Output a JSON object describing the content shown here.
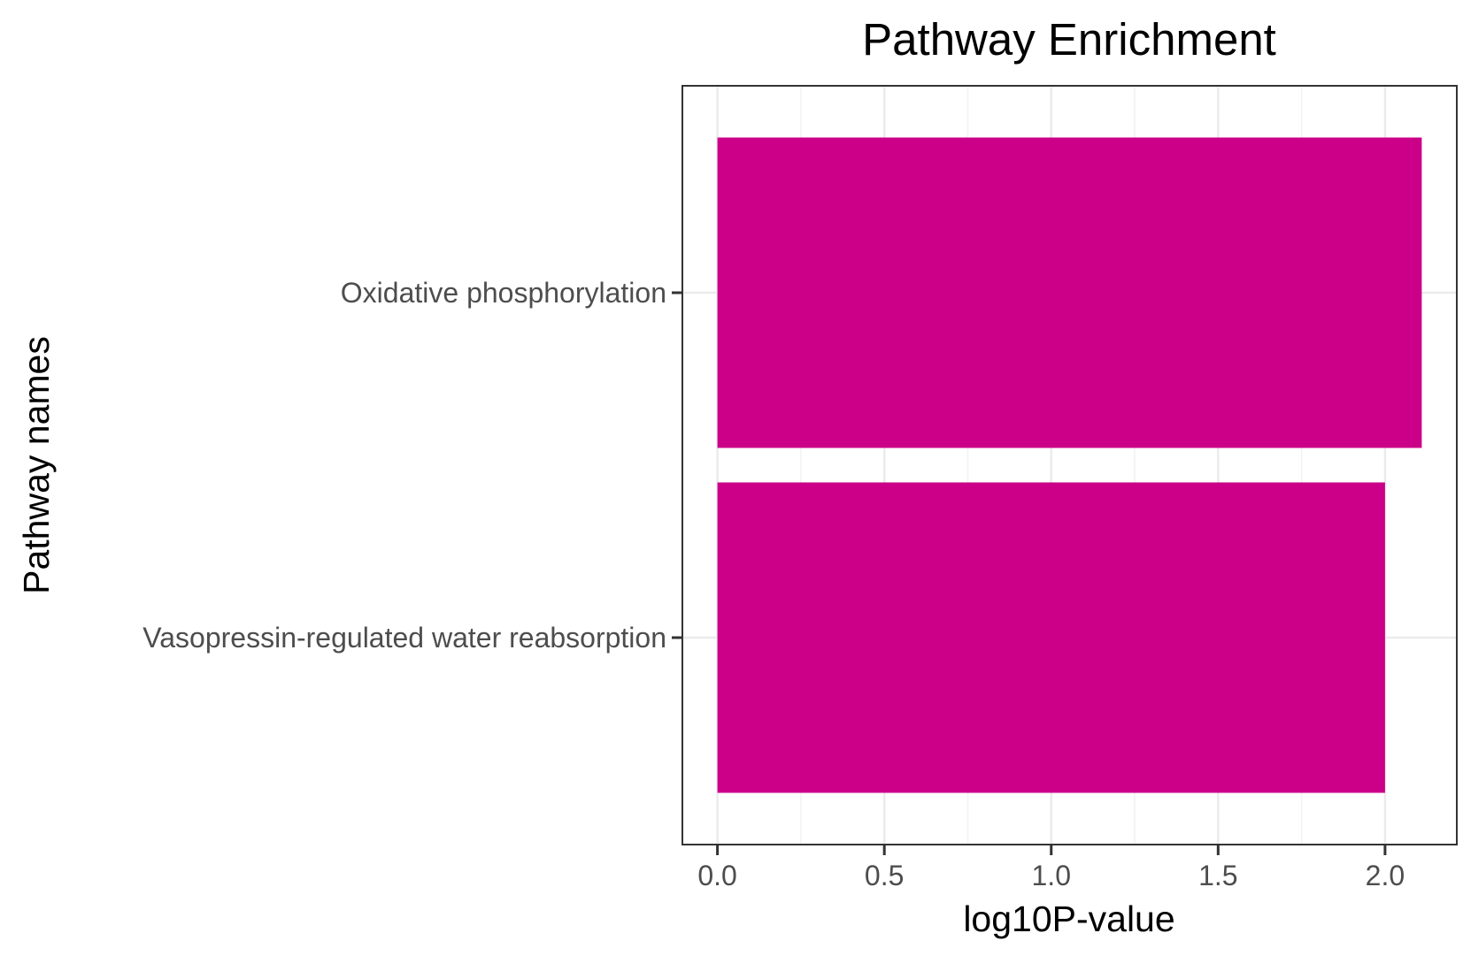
{
  "chart_data": {
    "type": "bar",
    "orientation": "horizontal",
    "title": "Pathway Enrichment",
    "xlabel": "log10P-value",
    "ylabel": "Pathway names",
    "categories": [
      "Oxidative phosphorylation",
      "Vasopressin-regulated water reabsorption"
    ],
    "values": [
      2.11,
      2.0
    ],
    "xlim": [
      -0.105,
      2.215
    ],
    "xticks": [
      "0.0",
      "0.5",
      "1.0",
      "1.5",
      "2.0"
    ],
    "bar_color": "#cc0088",
    "grid": true,
    "legend": "none"
  }
}
